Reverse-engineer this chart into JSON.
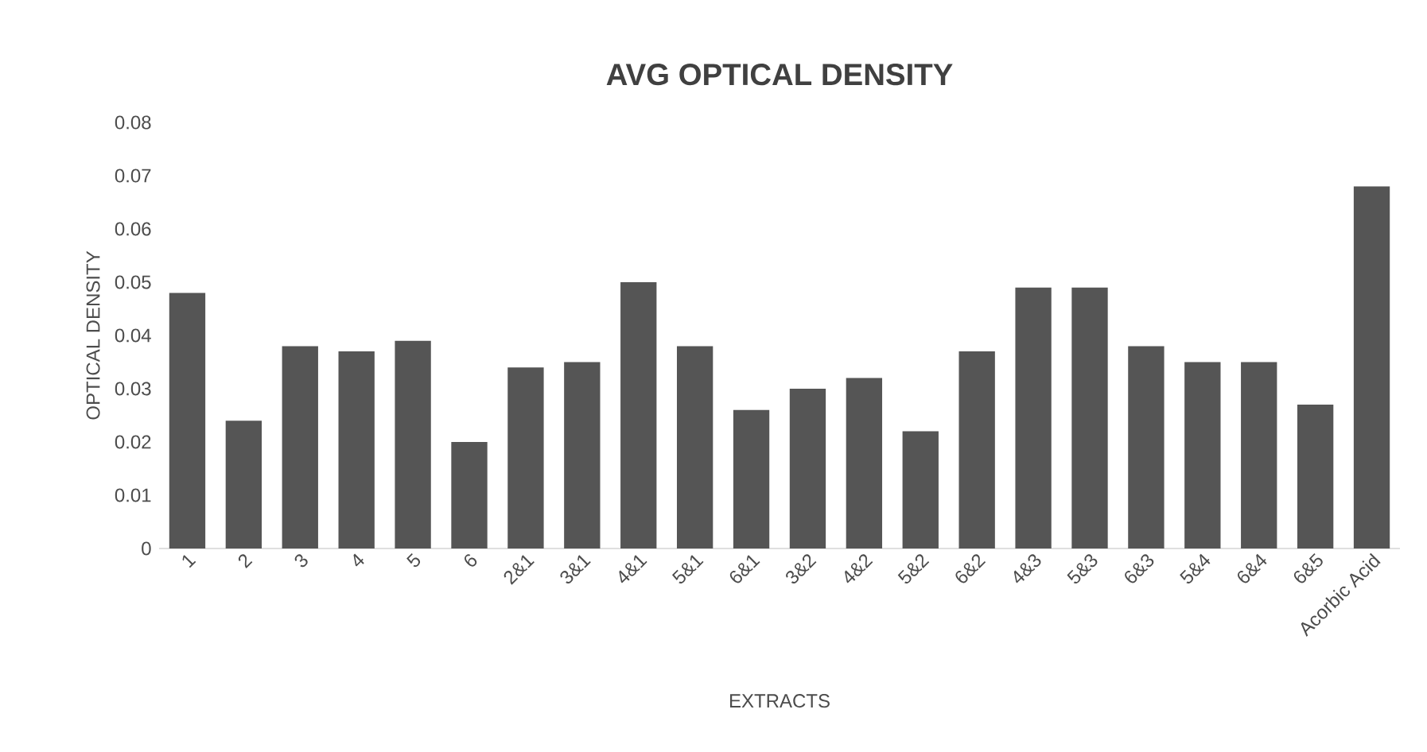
{
  "chart_data": {
    "type": "bar",
    "title": "AVG OPTICAL DENSITY",
    "xlabel": "EXTRACTS",
    "ylabel": "OPTICAL DENSITY",
    "categories": [
      "1",
      "2",
      "3",
      "4",
      "5",
      "6",
      "2&1",
      "3&1",
      "4&1",
      "5&1",
      "6&1",
      "3&2",
      "4&2",
      "5&2",
      "6&2",
      "4&3",
      "5&3",
      "6&3",
      "5&4",
      "6&4",
      "6&5",
      "Acorbic Acid"
    ],
    "values": [
      0.048,
      0.024,
      0.038,
      0.037,
      0.039,
      0.02,
      0.034,
      0.035,
      0.05,
      0.038,
      0.026,
      0.03,
      0.032,
      0.022,
      0.037,
      0.049,
      0.049,
      0.038,
      0.035,
      0.035,
      0.027,
      0.068
    ],
    "color": "#555555",
    "ylim": [
      0,
      0.08
    ],
    "yticks": [
      0,
      0.01,
      0.02,
      0.03,
      0.04,
      0.05,
      0.06,
      0.07,
      0.08
    ]
  }
}
